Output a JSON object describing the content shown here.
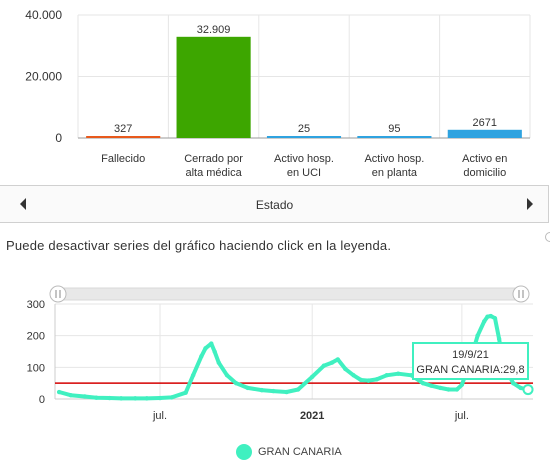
{
  "bar_colors": [
    "#e8591c",
    "#3da600",
    "#2fa3e0",
    "#2fa3e0",
    "#2fa3e0"
  ],
  "scroll": {
    "label": "Estado"
  },
  "hint": "Puede desactivar series del gráfico haciendo click en la leyenda.",
  "tooltip": {
    "date": "19/9/21",
    "value_text": "GRAN CANARIA:29,8"
  },
  "legend": {
    "label": "GRAN CANARIA"
  },
  "colors": {
    "series": "#40f0c0",
    "threshold": "#d40000",
    "grid": "#e6e6e6"
  },
  "chart_data": [
    {
      "type": "bar",
      "categories": [
        [
          "Fallecido"
        ],
        [
          "Cerrado por",
          "alta médica"
        ],
        [
          "Activo hosp.",
          "en UCI"
        ],
        [
          "Activo hosp.",
          "en planta"
        ],
        [
          "Activo en",
          "domicilio"
        ]
      ],
      "values": [
        327,
        32909,
        25,
        95,
        2671
      ],
      "value_labels": [
        "327",
        "32.909",
        "25",
        "95",
        "2671"
      ],
      "ylim": [
        0,
        40000
      ],
      "y_ticks": [
        0,
        20000,
        40000
      ],
      "y_tick_labels": [
        "0",
        "20.000",
        "40.000"
      ],
      "grid": true
    },
    {
      "type": "line",
      "series": [
        {
          "name": "GRAN CANARIA",
          "x": [
            "2020-03-01",
            "2020-03-15",
            "2020-04-01",
            "2020-04-15",
            "2020-05-01",
            "2020-05-15",
            "2020-06-01",
            "2020-06-15",
            "2020-07-01",
            "2020-07-15",
            "2020-08-01",
            "2020-08-10",
            "2020-08-20",
            "2020-08-25",
            "2020-09-01",
            "2020-09-05",
            "2020-09-10",
            "2020-09-20",
            "2020-10-01",
            "2020-10-15",
            "2020-11-01",
            "2020-11-15",
            "2020-12-01",
            "2020-12-15",
            "2021-01-01",
            "2021-01-15",
            "2021-01-25",
            "2021-02-01",
            "2021-02-10",
            "2021-02-20",
            "2021-03-01",
            "2021-03-10",
            "2021-03-20",
            "2021-04-01",
            "2021-04-15",
            "2021-05-01",
            "2021-05-15",
            "2021-05-25",
            "2021-06-05",
            "2021-06-15",
            "2021-06-25",
            "2021-07-01",
            "2021-07-10",
            "2021-07-20",
            "2021-07-28",
            "2021-08-01",
            "2021-08-05",
            "2021-08-10",
            "2021-08-15",
            "2021-08-20",
            "2021-09-01",
            "2021-09-10",
            "2021-09-19"
          ],
          "y": [
            22,
            12,
            8,
            4,
            3,
            2,
            2,
            2,
            3,
            5,
            20,
            75,
            135,
            160,
            175,
            150,
            115,
            75,
            50,
            35,
            28,
            25,
            22,
            30,
            70,
            105,
            115,
            125,
            95,
            75,
            60,
            58,
            62,
            75,
            80,
            75,
            50,
            42,
            35,
            30,
            30,
            45,
            110,
            200,
            245,
            260,
            262,
            255,
            190,
            110,
            50,
            35,
            29.8
          ]
        }
      ],
      "xlim": [
        "2020-02-25",
        "2021-09-25"
      ],
      "x_ticks": [
        "2020-07-01",
        "2021-01-01",
        "2021-07-01"
      ],
      "x_tick_labels": [
        "jul.",
        "2021",
        "jul."
      ],
      "ylim": [
        0,
        300
      ],
      "y_ticks": [
        0,
        100,
        200,
        300
      ],
      "y_tick_labels": [
        "0",
        "100",
        "200",
        "300"
      ],
      "threshold": 50,
      "grid": true
    }
  ]
}
